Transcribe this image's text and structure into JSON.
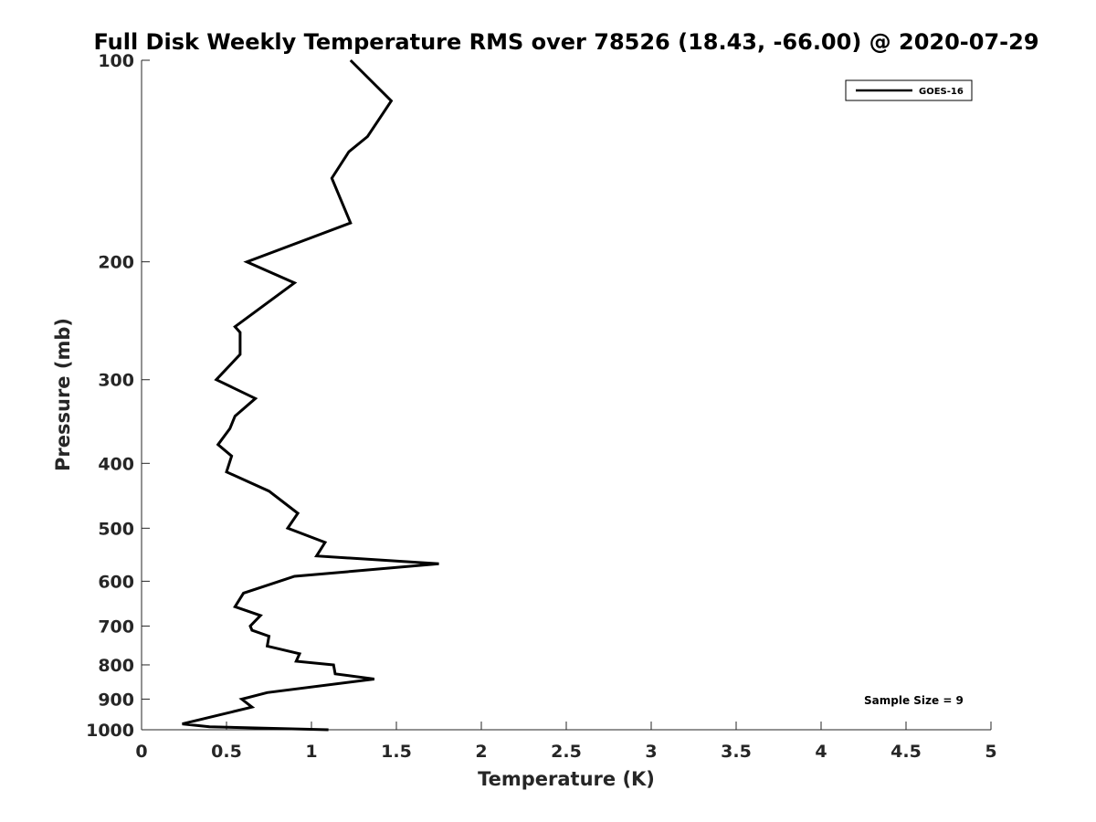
{
  "chart_data": {
    "type": "line",
    "title": "Full Disk Weekly Temperature RMS over 78526 (18.43, -66.00) @ 2020-07-29",
    "xlabel": "Temperature (K)",
    "ylabel": "Pressure (mb)",
    "xlim": [
      0,
      5
    ],
    "ylim": [
      100,
      1000
    ],
    "y_scale": "log",
    "y_reversed": true,
    "x_ticks": [
      "0",
      "0.5",
      "1",
      "1.5",
      "2",
      "2.5",
      "3",
      "3.5",
      "4",
      "4.5",
      "5"
    ],
    "y_ticks": [
      "100",
      "200",
      "300",
      "400",
      "500",
      "600",
      "700",
      "800",
      "900",
      "1000"
    ],
    "grid": false,
    "legend": {
      "position": "top-right",
      "entries": [
        "GOES-16"
      ]
    },
    "annotation": "Sample Size = 9",
    "series": [
      {
        "name": "GOES-16",
        "color": "#000000",
        "x": [
          1.23,
          1.47,
          1.33,
          1.22,
          1.12,
          1.23,
          0.62,
          0.9,
          0.55,
          0.58,
          0.58,
          0.44,
          0.67,
          0.55,
          0.52,
          0.45,
          0.53,
          0.5,
          0.75,
          0.92,
          0.86,
          1.08,
          1.03,
          1.75,
          0.9,
          0.6,
          0.55,
          0.7,
          0.64,
          0.65,
          0.75,
          0.74,
          0.93,
          0.91,
          1.13,
          1.14,
          1.37,
          0.74,
          0.59,
          0.65,
          0.46,
          0.24,
          0.4,
          1.1
        ],
        "y": [
          100,
          115,
          130,
          137,
          150,
          175,
          200,
          215,
          250,
          255,
          275,
          300,
          320,
          340,
          355,
          375,
          390,
          412,
          440,
          475,
          500,
          525,
          550,
          565,
          590,
          625,
          655,
          675,
          700,
          710,
          725,
          750,
          770,
          790,
          800,
          825,
          840,
          880,
          900,
          925,
          950,
          980,
          990,
          1000
        ]
      }
    ]
  }
}
